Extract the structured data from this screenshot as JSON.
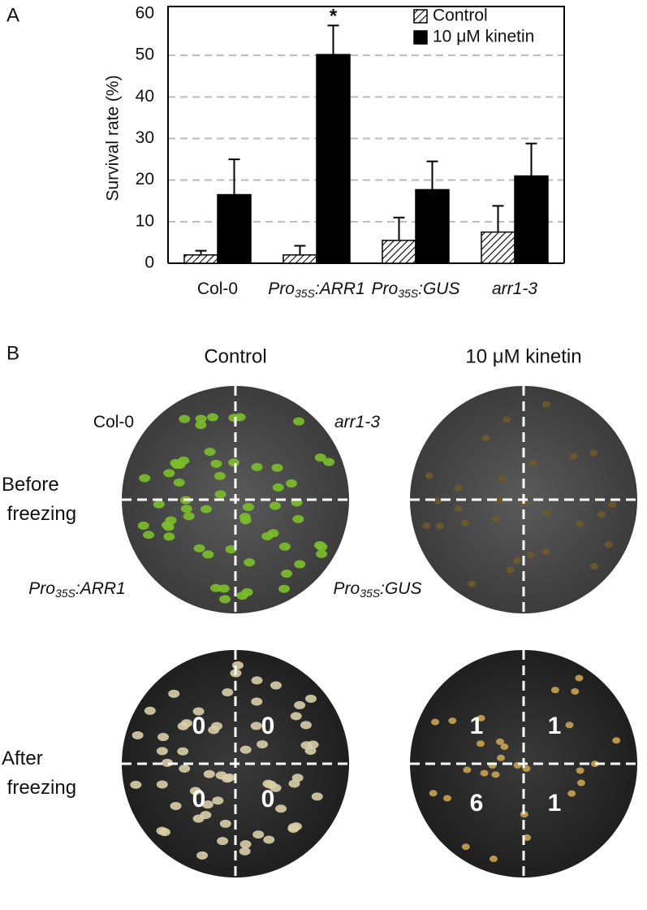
{
  "chart_data": {
    "type": "bar",
    "panel_label": "A",
    "ylabel": "Survival rate (%)",
    "categories": [
      "Col-0",
      "Pro35S:ARR1",
      "Pro35S:GUS",
      "arr1-3"
    ],
    "label_italic": [
      false,
      true,
      true,
      true
    ],
    "series": [
      {
        "name": "Control",
        "color": "#ffffff",
        "hatch": true,
        "values": [
          2,
          2,
          5.5,
          7.5
        ],
        "errors": [
          1,
          2.2,
          5.5,
          6.3
        ]
      },
      {
        "name": "10 μM kinetin",
        "color": "#000000",
        "hatch": false,
        "values": [
          16.5,
          50.2,
          17.7,
          21
        ],
        "errors": [
          8.5,
          7,
          6.8,
          7.8
        ]
      }
    ],
    "annotations": [
      {
        "text": "*",
        "series": 1,
        "category": 1
      }
    ],
    "ylim": [
      0,
      60
    ],
    "yticks": [
      0,
      10,
      20,
      30,
      40,
      50,
      60
    ],
    "grid": true,
    "legend": "top-right"
  },
  "panel_b": {
    "panel_label": "B",
    "row_labels": [
      "Before freezing",
      "After freezing"
    ],
    "survivor_counts": {
      "control": [
        0,
        0,
        0,
        0
      ],
      "kinetin": [
        1,
        1,
        6,
        1
      ]
    }
  }
}
